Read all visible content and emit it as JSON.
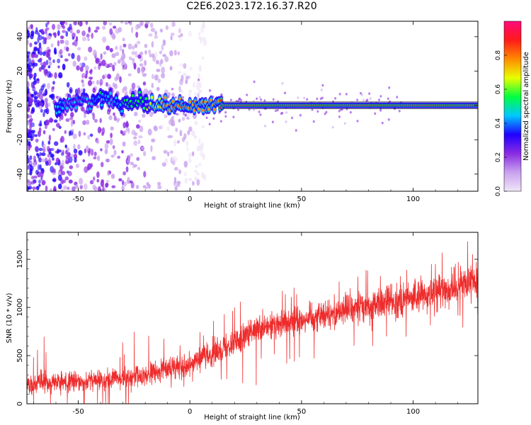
{
  "title": "C2E6.2023.172.16.37.R20",
  "colors": {
    "snr_line": "#ee2c2c",
    "band_edge": "#222222",
    "colormap": [
      "#f0e6f8",
      "#c9a2ee",
      "#8a2be2",
      "#1f00ff",
      "#00c8ff",
      "#00ff40",
      "#e8ff00",
      "#ff8a00",
      "#ff1a1a",
      "#ff0a7a"
    ]
  },
  "chart_data": [
    {
      "type": "heatmap",
      "name": "spectrogram",
      "xlabel": "Height of straight line (km)",
      "ylabel": "Frequency (Hz)",
      "xlim": [
        -73,
        129
      ],
      "ylim": [
        -50,
        49
      ],
      "xticks": [
        -50,
        0,
        50,
        100
      ],
      "yticks": [
        -40,
        -20,
        0,
        20,
        40
      ],
      "colorbar": {
        "label": "Normalized spectral amplitude",
        "range": [
          0,
          1
        ],
        "ticks": [
          "0.0",
          "0.2",
          "0.4",
          "0.6",
          "0.8"
        ]
      },
      "filter_band_hz": [
        -2,
        2
      ],
      "signal_track": [
        {
          "x": -60,
          "freq": -2,
          "amp": 0.5
        },
        {
          "x": -55,
          "freq": 1,
          "amp": 0.45
        },
        {
          "x": -50,
          "freq": 2,
          "amp": 0.4
        },
        {
          "x": -45,
          "freq": 3,
          "amp": 0.45
        },
        {
          "x": -40,
          "freq": 4,
          "amp": 0.5
        },
        {
          "x": -35,
          "freq": 3,
          "amp": 0.45
        },
        {
          "x": -30,
          "freq": 2,
          "amp": 0.5
        },
        {
          "x": -25,
          "freq": 3,
          "amp": 0.55
        },
        {
          "x": -20,
          "freq": 2,
          "amp": 0.6
        },
        {
          "x": -15,
          "freq": 1,
          "amp": 0.7
        },
        {
          "x": -10,
          "freq": 0,
          "amp": 0.75
        },
        {
          "x": -5,
          "freq": 0,
          "amp": 0.8
        },
        {
          "x": 0,
          "freq": -1,
          "amp": 0.8
        },
        {
          "x": 5,
          "freq": 0,
          "amp": 0.8
        },
        {
          "x": 10,
          "freq": 1,
          "amp": 0.8
        },
        {
          "x": 15,
          "freq": 0,
          "amp": 0.85
        },
        {
          "x": 20,
          "freq": 0,
          "amp": 0.88
        },
        {
          "x": 50,
          "freq": 0,
          "amp": 0.9
        },
        {
          "x": 80,
          "freq": 0,
          "amp": 0.9
        },
        {
          "x": 90,
          "freq": 0,
          "amp": 0.88
        },
        {
          "x": 93,
          "freq": 0,
          "amp": 0.85
        },
        {
          "x": 100,
          "freq": 0,
          "amp": 0.9
        },
        {
          "x": 129,
          "freq": 0,
          "amp": 0.9
        }
      ]
    },
    {
      "type": "line",
      "name": "snr",
      "xlabel": "Height of straight line (km)",
      "ylabel": "SNR (10 * v/v)",
      "xlim": [
        -73,
        129
      ],
      "ylim": [
        0,
        1780
      ],
      "xticks": [
        -50,
        0,
        50,
        100
      ],
      "yticks": [
        0,
        500,
        1000,
        1500
      ],
      "trend": {
        "x": [
          -73,
          -50,
          -25,
          -15,
          0,
          10,
          20,
          30,
          50,
          70,
          85,
          100,
          115,
          129
        ],
        "y": [
          210,
          230,
          270,
          330,
          420,
          520,
          650,
          760,
          880,
          980,
          1040,
          1100,
          1180,
          1250
        ]
      },
      "spread": 130
    }
  ]
}
